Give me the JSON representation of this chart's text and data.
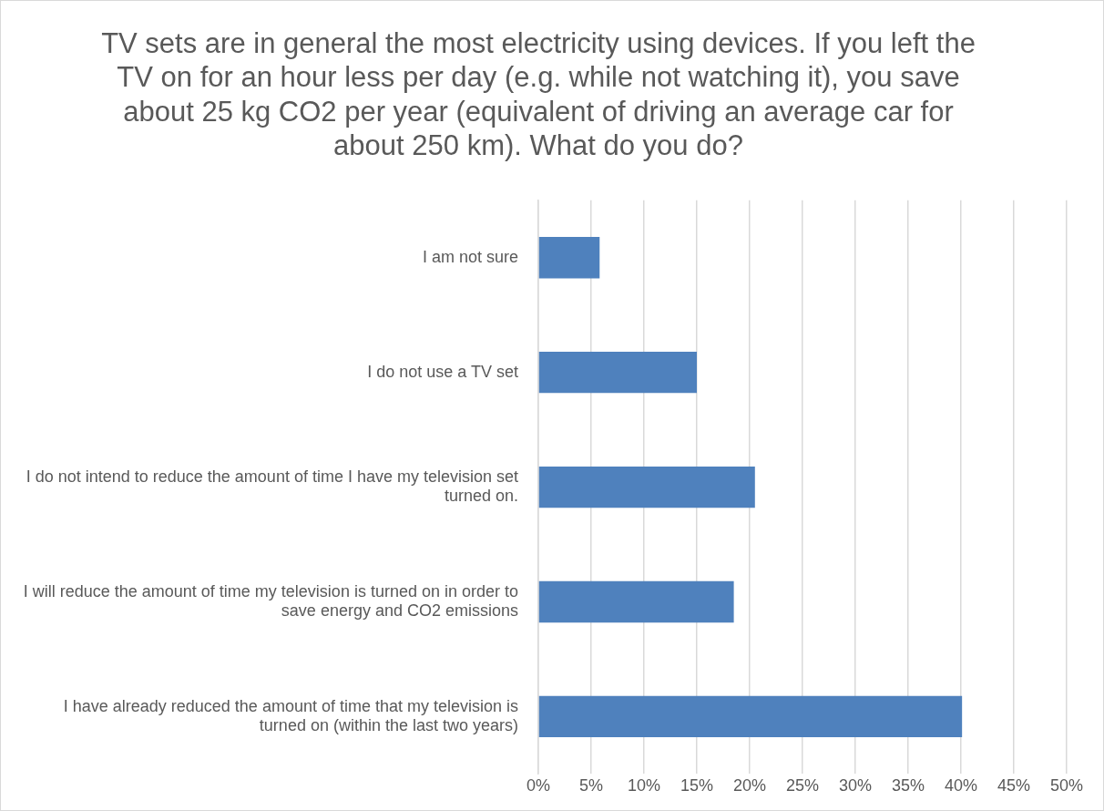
{
  "chart_data": {
    "type": "bar",
    "orientation": "horizontal",
    "title": "TV sets are in general the most electricity using devices. If you left the TV on for an hour less per day (e.g. while not watching it), you save about 25 kg CO2 per year (equivalent of driving an average car for about 250 km). What do you do?",
    "categories": [
      "I am not sure",
      "I do not use a TV set",
      "I do not intend to reduce the amount of time I have my television set turned on.",
      "I will reduce the amount of time my television is turned on in order to save energy and CO2 emissions",
      "I have already reduced the amount of time that my television is turned on (within the last two years)"
    ],
    "values": [
      5.8,
      15.0,
      20.5,
      18.5,
      40.1
    ],
    "color": "#4f81bd",
    "xlim": [
      0,
      50
    ],
    "xticks": [
      {
        "value": 0,
        "label": "0%"
      },
      {
        "value": 5,
        "label": "5%"
      },
      {
        "value": 10,
        "label": "10%"
      },
      {
        "value": 15,
        "label": "15%"
      },
      {
        "value": 20,
        "label": "20%"
      },
      {
        "value": 25,
        "label": "25%"
      },
      {
        "value": 30,
        "label": "30%"
      },
      {
        "value": 35,
        "label": "35%"
      },
      {
        "value": 40,
        "label": "40%"
      },
      {
        "value": 45,
        "label": "45%"
      },
      {
        "value": 50,
        "label": "50%"
      }
    ],
    "grid": "x",
    "legend": false
  }
}
